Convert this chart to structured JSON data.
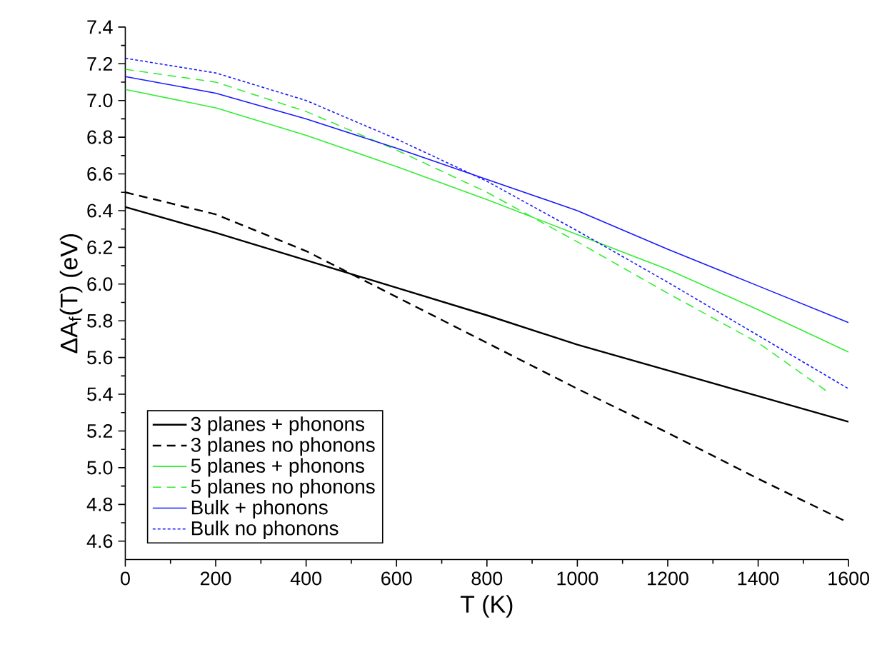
{
  "chart_data": {
    "type": "line",
    "xlabel": "T (K)",
    "ylabel": "ΔA$_{f}$(T) (eV)",
    "x": [
      0,
      200,
      400,
      600,
      800,
      1000,
      1200,
      1400,
      1600
    ],
    "xlim": [
      0,
      1600
    ],
    "xticks": [
      0,
      200,
      400,
      600,
      800,
      1000,
      1200,
      1400,
      1600
    ],
    "ylim": [
      4.5,
      7.4
    ],
    "yticks": [
      4.6,
      4.8,
      {
        "value": 5,
        "label": "5.0"
      },
      5.2,
      5.4,
      5.6,
      5.8,
      {
        "value": 6,
        "label": "6.0"
      },
      6.2,
      6.4,
      6.6,
      6.8,
      {
        "value": 7,
        "label": "7.0"
      },
      7.2,
      7.4
    ],
    "legend": "bottom left",
    "grid": false,
    "marker": "none",
    "series": [
      {
        "name": "3 planes + phonons",
        "color": "#000000",
        "line_style": "solid",
        "values": [
          6.42,
          6.28,
          6.13,
          5.98,
          5.83,
          5.67,
          5.53,
          5.39,
          5.25
        ]
      },
      {
        "name": "3 planes no phonons",
        "color": "#000000",
        "line_style": "dashed",
        "values": [
          6.5,
          6.38,
          6.18,
          5.93,
          5.68,
          5.43,
          5.19,
          4.94,
          4.7
        ]
      },
      {
        "name": "5 planes + phonons",
        "color": "#33ee33",
        "line_style": "solid",
        "values": [
          7.06,
          6.96,
          6.81,
          6.64,
          6.46,
          6.27,
          6.08,
          5.86,
          5.63
        ]
      },
      {
        "name": "5 planes no phonons",
        "color": "#33ee33",
        "line_style": "dashed",
        "x": [
          0,
          200,
          400,
          600,
          800,
          1000,
          1200,
          1400,
          1550
        ],
        "values": [
          7.17,
          7.1,
          6.94,
          6.73,
          6.5,
          6.23,
          5.95,
          5.68,
          5.42
        ]
      },
      {
        "name": "Bulk + phonons",
        "color": "#1a1aff",
        "line_style": "solid",
        "values": [
          7.13,
          7.04,
          6.9,
          6.74,
          6.57,
          6.4,
          6.19,
          5.99,
          5.79
        ]
      },
      {
        "name": "Bulk no phonons",
        "color": "#1a1aff",
        "line_style": "dotted",
        "values": [
          7.23,
          7.15,
          7.0,
          6.79,
          6.56,
          6.29,
          6.01,
          5.72,
          5.43
        ]
      }
    ]
  }
}
